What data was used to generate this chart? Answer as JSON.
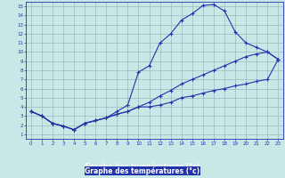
{
  "title": "Graphe des températures (°c)",
  "background_color": "#c8e8e8",
  "grid_color": "#99bbbb",
  "line_color": "#2233aa",
  "label_bar_color": "#2233aa",
  "label_text_color": "#ffffff",
  "tick_color": "#2233aa",
  "xlim": [
    -0.5,
    23.5
  ],
  "ylim": [
    0.5,
    15.5
  ],
  "xticks": [
    0,
    1,
    2,
    3,
    4,
    5,
    6,
    7,
    8,
    9,
    10,
    11,
    12,
    13,
    14,
    15,
    16,
    17,
    18,
    19,
    20,
    21,
    22,
    23
  ],
  "yticks": [
    1,
    2,
    3,
    4,
    5,
    6,
    7,
    8,
    9,
    10,
    11,
    12,
    13,
    14,
    15
  ],
  "line1_x": [
    0,
    1,
    2,
    3,
    4,
    5,
    6,
    7,
    8,
    9,
    10,
    11,
    12,
    13,
    14,
    15,
    16,
    17,
    18,
    19,
    20,
    21,
    22,
    23
  ],
  "line1_y": [
    3.5,
    3.0,
    2.2,
    1.9,
    1.5,
    2.2,
    2.5,
    2.8,
    3.2,
    3.5,
    4.0,
    4.0,
    4.2,
    4.5,
    5.0,
    5.2,
    5.5,
    5.8,
    6.0,
    6.3,
    6.5,
    6.8,
    7.0,
    9.2
  ],
  "line2_x": [
    0,
    1,
    2,
    3,
    4,
    5,
    6,
    7,
    8,
    9,
    10,
    11,
    12,
    13,
    14,
    15,
    16,
    17,
    18,
    19,
    20,
    21,
    22,
    23
  ],
  "line2_y": [
    3.5,
    3.0,
    2.2,
    1.9,
    1.5,
    2.2,
    2.5,
    2.8,
    3.5,
    4.2,
    7.8,
    8.5,
    11.0,
    12.0,
    13.5,
    14.2,
    15.1,
    15.2,
    14.5,
    12.2,
    11.0,
    10.5,
    10.0,
    9.2
  ],
  "line3_x": [
    0,
    1,
    2,
    3,
    4,
    5,
    6,
    7,
    8,
    9,
    10,
    11,
    12,
    13,
    14,
    15,
    16,
    17,
    18,
    19,
    20,
    21,
    22,
    23
  ],
  "line3_y": [
    3.5,
    3.0,
    2.2,
    1.9,
    1.5,
    2.2,
    2.5,
    2.8,
    3.2,
    3.5,
    4.0,
    4.5,
    5.2,
    5.8,
    6.5,
    7.0,
    7.5,
    8.0,
    8.5,
    9.0,
    9.5,
    9.8,
    10.0,
    9.2
  ]
}
